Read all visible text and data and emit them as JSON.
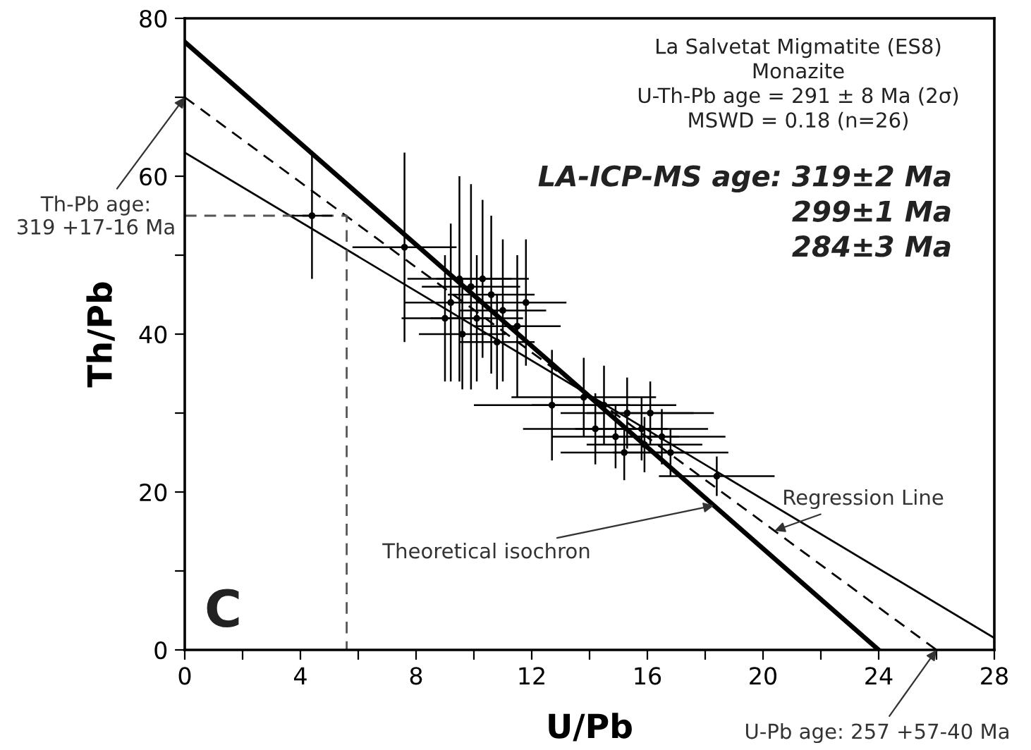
{
  "chart_data": {
    "type": "line",
    "xlabel": "U/Pb",
    "ylabel": "Th/Pb",
    "xlim": [
      0,
      28
    ],
    "ylim": [
      0,
      80
    ],
    "xticks": [
      0,
      {
        "value": 2,
        "label": null
      },
      4,
      {
        "value": 6,
        "label": null
      },
      8,
      {
        "value": 10,
        "label": null
      },
      12,
      {
        "value": 14,
        "label": null
      },
      16,
      {
        "value": 18,
        "label": null
      },
      20,
      {
        "value": 22,
        "label": null
      },
      24,
      {
        "value": 26,
        "label": null
      },
      28
    ],
    "yticks": [
      0,
      {
        "value": 10,
        "label": null
      },
      20,
      {
        "value": 30,
        "label": null
      },
      40,
      {
        "value": 50,
        "label": null
      },
      60,
      {
        "value": 70,
        "label": null
      },
      80
    ],
    "grid": false,
    "legend": false,
    "series": [
      {
        "type": "line",
        "color": "#000000",
        "line_style": "solid",
        "marker": "none",
        "x": [
          0,
          24
        ],
        "values": [
          77,
          0
        ]
      },
      {
        "type": "line",
        "color": "#000000",
        "line_style": "dashed",
        "marker": "none",
        "x": [
          0,
          26
        ],
        "values": [
          70,
          0
        ]
      },
      {
        "type": "line",
        "color": "#000000",
        "line_style": "solid",
        "marker": "none",
        "x": [
          0,
          28
        ],
        "values": [
          63,
          1.5
        ]
      },
      {
        "type": "line",
        "color": "#555555",
        "line_style": "dashed",
        "marker": "none",
        "x": [
          0,
          5.6,
          5.6
        ],
        "values": [
          55,
          55,
          0
        ]
      },
      {
        "type": "scatter",
        "color": "#000000",
        "marker": "circle",
        "x": [
          4.4,
          7.6,
          9.5,
          9.9,
          10.3,
          9.2,
          10.6,
          9.0,
          10.1,
          11.0,
          11.5,
          9.6,
          11.8,
          10.8,
          12.7,
          13.8,
          14.5,
          15.3,
          14.2,
          15.8,
          16.1,
          14.9,
          15.9,
          16.5,
          15.2,
          16.8,
          18.4
        ],
        "values": [
          55,
          51,
          47,
          46,
          47,
          44,
          45,
          42,
          42,
          43,
          41,
          40,
          44,
          39,
          31,
          32,
          31,
          30,
          28,
          28,
          30,
          27,
          26,
          27,
          25,
          25,
          22
        ],
        "xerrors": [
          0.7,
          1.8,
          1.8,
          1.7,
          1.6,
          1.6,
          1.5,
          1.5,
          1.6,
          1.5,
          1.5,
          1.5,
          1.4,
          1.3,
          2.7,
          2.5,
          2.5,
          2.3,
          2.5,
          2.3,
          2.2,
          2.2,
          2.0,
          2.2,
          2.2,
          2.0,
          2.0
        ],
        "errors": [
          8,
          12,
          13,
          13,
          10,
          10,
          10,
          8,
          8,
          9,
          9,
          7,
          8,
          6,
          7,
          5,
          5,
          4.5,
          4.5,
          4,
          4,
          4,
          3.5,
          3.5,
          3.5,
          3,
          2.5
        ]
      }
    ],
    "annotations": [
      {
        "text": "Th-Pb age:\n319 +17-16 Ma",
        "x": 0,
        "y": 70
      },
      {
        "text": "U-Pb age: 257 +57-40 Ma",
        "x": 26,
        "y": 0
      },
      {
        "text": "Theoretical isochron",
        "x": 18.3,
        "y": 18.3
      },
      {
        "text": "Regression Line",
        "x": 20.4,
        "y": 15.1
      },
      "La Salvetat Migmatite (ES8)\nMonazite\nU-Th-Pb age = 291 ± 8 Ma (2σ)\nMSWD = 0.18 (n=26)",
      "LA-ICP-MS age: 319±2 Ma\n299±1 Ma\n284±3 Ma",
      "C"
    ]
  }
}
